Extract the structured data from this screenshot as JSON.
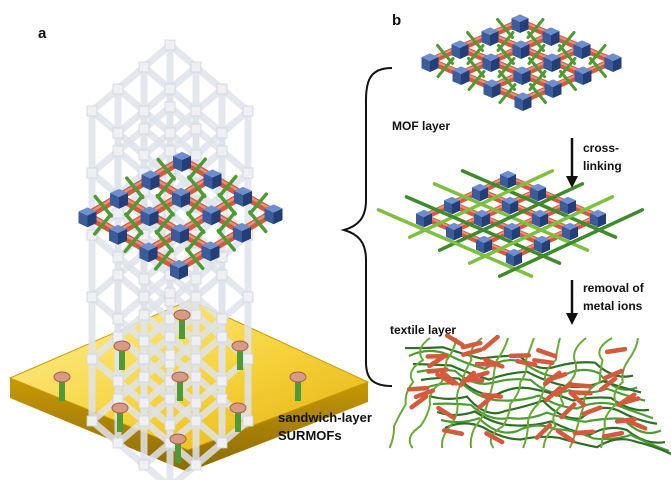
{
  "panel_a": {
    "label": "a",
    "caption_line1": "sandwich-layer",
    "caption_line2": "SURMOFs"
  },
  "panel_b": {
    "label": "b",
    "mof_layer": "MOF layer",
    "textile_layer": "textile layer",
    "step1_line1": "cross-",
    "step1_line2": "linking",
    "step2_line1": "removal of",
    "step2_line2": "metal ions"
  },
  "colors": {
    "node": "#3b5b9a",
    "linker": "#d35a3c",
    "crosslinker": "#4f9a35",
    "substrate": "#f0c418",
    "frame": "#dfe3ea"
  }
}
